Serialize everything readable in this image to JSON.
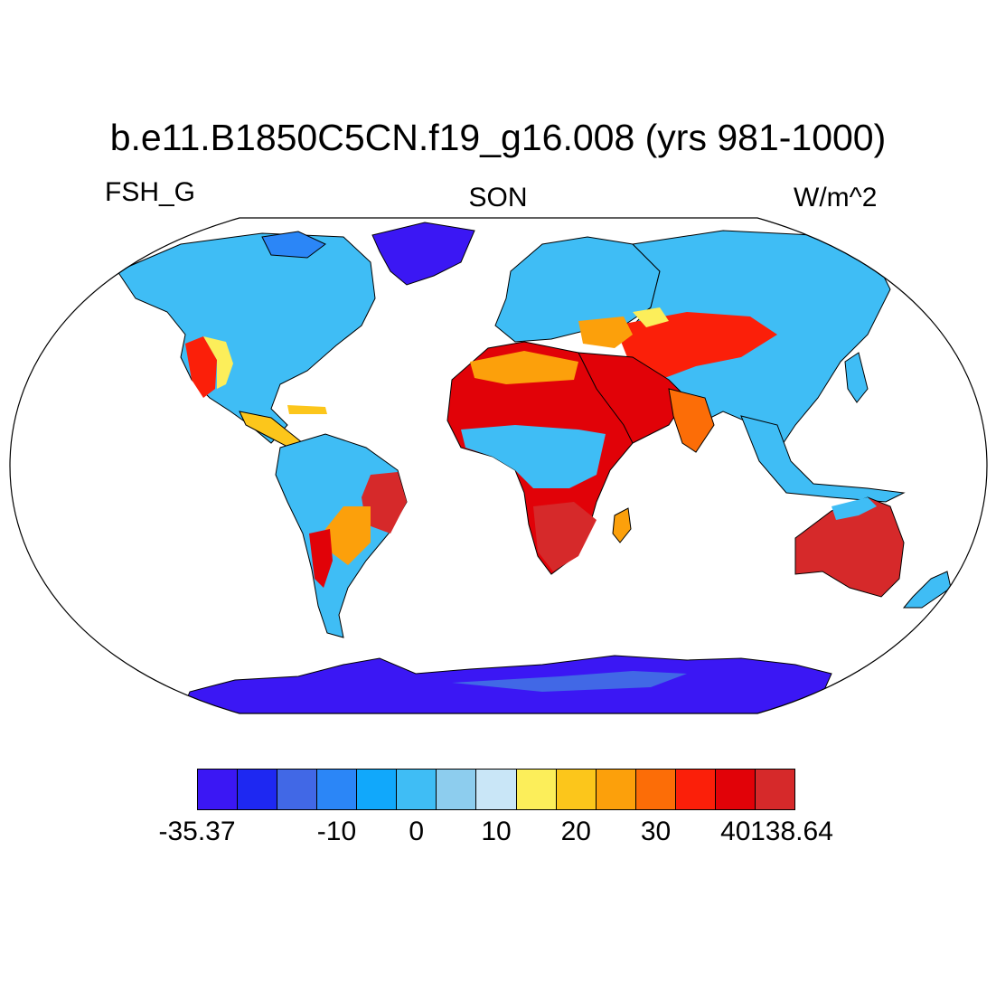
{
  "header": {
    "title": "b.e11.B1850C5CN.f19_g16.008 (yrs 981-1000)",
    "variable": "FSH_G",
    "season": "SON",
    "units": "W/m^2"
  },
  "map": {
    "projection": "robinson",
    "field": "FSH_G",
    "land_fill": "heat-flux-shaded",
    "ocean_fill": "#ffffff"
  },
  "colorbar": {
    "colors": [
      "#3b17f4",
      "#1e28f2",
      "#4168e6",
      "#2b86f7",
      "#11a8fb",
      "#3fbdf5",
      "#8dcdee",
      "#c9e6f7",
      "#fcee5a",
      "#fcc61b",
      "#fca00b",
      "#fc6d07",
      "#fb1f09",
      "#e10208",
      "#d6292a"
    ],
    "labels": [
      {
        "text": "-35.37",
        "boundary": 0
      },
      {
        "text": "-10",
        "boundary": 3
      },
      {
        "text": "0",
        "boundary": 5
      },
      {
        "text": "10",
        "boundary": 7
      },
      {
        "text": "20",
        "boundary": 9
      },
      {
        "text": "30",
        "boundary": 11
      },
      {
        "text": "40",
        "boundary": 13
      },
      {
        "text": "138.64",
        "boundary": 14
      }
    ]
  }
}
